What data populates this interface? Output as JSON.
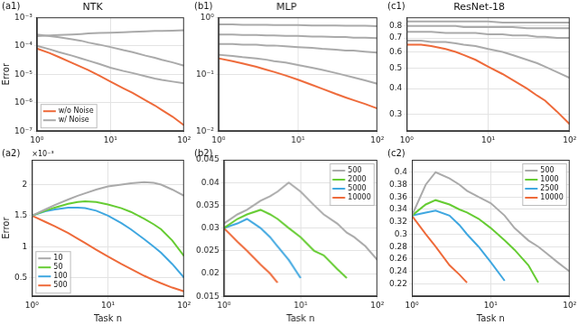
{
  "chart_data": [
    {
      "type": "line",
      "panel": "(a1)",
      "title": "NTK",
      "log": true,
      "grid": true,
      "legend": "lower left",
      "y_label": "Error",
      "xlim": [
        1,
        100
      ],
      "xticks": [
        {
          "value": 1,
          "label": "10⁰"
        },
        {
          "value": 10,
          "label": "10¹"
        },
        {
          "value": 100,
          "label": "10²"
        }
      ],
      "ylim": [
        1e-07,
        0.001
      ],
      "yticks": [
        {
          "value": 1e-07,
          "label": "10⁻⁷"
        },
        {
          "value": 1e-06,
          "label": "10⁻⁶"
        },
        {
          "value": 1e-05,
          "label": "10⁻⁵"
        },
        {
          "value": 0.0001,
          "label": "10⁻⁴"
        },
        {
          "value": 0.001,
          "label": "10⁻³"
        }
      ],
      "x": [
        1,
        1.5,
        2,
        3,
        4,
        5,
        7,
        10,
        15,
        20,
        30,
        40,
        50,
        70,
        100
      ],
      "series": [
        {
          "name": "w/o Noise",
          "color": "#ee6a3a",
          "values": [
            8e-05,
            5.5e-05,
            4e-05,
            2.5e-05,
            1.8e-05,
            1.4e-05,
            9e-06,
            5.5e-06,
            3.2e-06,
            2.2e-06,
            1.2e-06,
            8e-07,
            5.5e-07,
            3.2e-07,
            1.6e-07
          ]
        },
        {
          "name": "w/ Noise",
          "color": "#aaaaaa",
          "values": [
            0.00022,
            0.00023,
            0.00024,
            0.00025,
            0.00026,
            0.00027,
            0.00028,
            0.00029,
            0.0003,
            0.00031,
            0.00032,
            0.00033,
            0.00033,
            0.00034,
            0.00035
          ]
        },
        {
          "color": "#aaaaaa",
          "values": [
            0.00025,
            0.00022,
            0.0002,
            0.00017,
            0.00015,
            0.00013,
            0.00011,
            9e-05,
            7e-05,
            6e-05,
            4.5e-05,
            3.8e-05,
            3.2e-05,
            2.6e-05,
            2e-05
          ]
        },
        {
          "color": "#aaaaaa",
          "values": [
            0.0001,
            7.5e-05,
            6e-05,
            4.5e-05,
            3.6e-05,
            3e-05,
            2.3e-05,
            1.7e-05,
            1.3e-05,
            1.1e-05,
            8.5e-06,
            7e-06,
            6.3e-06,
            5.5e-06,
            4.8e-06
          ]
        }
      ]
    },
    {
      "type": "line",
      "panel": "(b1)",
      "title": "MLP",
      "log": true,
      "grid": true,
      "xlim": [
        1,
        100
      ],
      "xticks": [
        {
          "value": 1,
          "label": "10⁰"
        },
        {
          "value": 10,
          "label": "10¹"
        },
        {
          "value": 100,
          "label": "10²"
        }
      ],
      "ylim": [
        0.01,
        1
      ],
      "yticks": [
        {
          "value": 0.01,
          "label": "10⁻²"
        },
        {
          "value": 0.1,
          "label": "10⁻¹"
        },
        {
          "value": 1,
          "label": "10⁰"
        }
      ],
      "x": [
        1,
        1.5,
        2,
        3,
        4,
        5,
        7,
        10,
        15,
        20,
        30,
        40,
        50,
        70,
        100
      ],
      "series": [
        {
          "color": "#aaaaaa",
          "values": [
            0.75,
            0.75,
            0.74,
            0.74,
            0.74,
            0.73,
            0.73,
            0.73,
            0.72,
            0.72,
            0.72,
            0.71,
            0.71,
            0.71,
            0.7
          ]
        },
        {
          "color": "#aaaaaa",
          "values": [
            0.5,
            0.5,
            0.49,
            0.49,
            0.48,
            0.48,
            0.47,
            0.47,
            0.46,
            0.46,
            0.45,
            0.45,
            0.44,
            0.44,
            0.43
          ]
        },
        {
          "color": "#aaaaaa",
          "values": [
            0.34,
            0.34,
            0.33,
            0.33,
            0.32,
            0.32,
            0.31,
            0.3,
            0.29,
            0.28,
            0.27,
            0.26,
            0.26,
            0.25,
            0.24
          ]
        },
        {
          "color": "#aaaaaa",
          "values": [
            0.22,
            0.21,
            0.2,
            0.19,
            0.18,
            0.17,
            0.16,
            0.145,
            0.13,
            0.12,
            0.105,
            0.095,
            0.088,
            0.078,
            0.068
          ]
        },
        {
          "color": "#ee6a3a",
          "values": [
            0.19,
            0.17,
            0.155,
            0.135,
            0.12,
            0.11,
            0.095,
            0.08,
            0.065,
            0.056,
            0.045,
            0.039,
            0.035,
            0.03,
            0.025
          ]
        }
      ]
    },
    {
      "type": "line",
      "panel": "(c1)",
      "title": "ResNet-18",
      "log": true,
      "grid": true,
      "xlim": [
        1,
        100
      ],
      "xticks": [
        {
          "value": 1,
          "label": "10⁰"
        },
        {
          "value": 10,
          "label": "10¹"
        },
        {
          "value": 100,
          "label": "10²"
        }
      ],
      "ylim": [
        0.25,
        0.88
      ],
      "yticks": [
        0.3,
        0.4,
        0.5,
        0.6,
        0.7,
        0.8
      ],
      "x": [
        1,
        1.5,
        2,
        3,
        4,
        5,
        7,
        10,
        15,
        20,
        30,
        40,
        50,
        70,
        100
      ],
      "series": [
        {
          "color": "#aaaaaa",
          "values": [
            0.84,
            0.84,
            0.84,
            0.84,
            0.84,
            0.84,
            0.84,
            0.84,
            0.83,
            0.83,
            0.83,
            0.83,
            0.83,
            0.83,
            0.83
          ]
        },
        {
          "color": "#aaaaaa",
          "values": [
            0.8,
            0.8,
            0.8,
            0.8,
            0.8,
            0.79,
            0.79,
            0.79,
            0.79,
            0.79,
            0.78,
            0.78,
            0.78,
            0.78,
            0.78
          ]
        },
        {
          "color": "#aaaaaa",
          "values": [
            0.75,
            0.75,
            0.75,
            0.74,
            0.74,
            0.74,
            0.74,
            0.73,
            0.73,
            0.72,
            0.72,
            0.71,
            0.71,
            0.7,
            0.7
          ]
        },
        {
          "color": "#aaaaaa",
          "values": [
            0.68,
            0.68,
            0.67,
            0.67,
            0.66,
            0.65,
            0.64,
            0.62,
            0.6,
            0.58,
            0.55,
            0.53,
            0.51,
            0.48,
            0.45
          ]
        },
        {
          "color": "#ee6a3a",
          "values": [
            0.65,
            0.65,
            0.64,
            0.62,
            0.6,
            0.58,
            0.55,
            0.51,
            0.47,
            0.44,
            0.4,
            0.37,
            0.35,
            0.31,
            0.27
          ]
        }
      ]
    },
    {
      "type": "line",
      "panel": "(a2)",
      "annotation": "×10⁻³",
      "log": "x",
      "grid": true,
      "legend": "lower left",
      "x_label": "Task n",
      "y_label": "Error",
      "xlim": [
        1,
        100
      ],
      "xticks": [
        {
          "value": 1,
          "label": "10⁰"
        },
        {
          "value": 10,
          "label": "10¹"
        },
        {
          "value": 100,
          "label": "10²"
        }
      ],
      "ylim": [
        0.2,
        2.4
      ],
      "yticks": [
        0.5,
        1,
        1.5,
        2
      ],
      "x": [
        1,
        1.5,
        2,
        3,
        4,
        5,
        7,
        10,
        15,
        20,
        30,
        40,
        50,
        70,
        100
      ],
      "series": [
        {
          "name": "10",
          "color": "#aaaaaa",
          "values": [
            1.5,
            1.6,
            1.67,
            1.76,
            1.82,
            1.86,
            1.92,
            1.97,
            2.0,
            2.02,
            2.04,
            2.03,
            2.0,
            1.92,
            1.82
          ]
        },
        {
          "name": "50",
          "color": "#66cc33",
          "values": [
            1.5,
            1.58,
            1.63,
            1.69,
            1.72,
            1.73,
            1.72,
            1.68,
            1.62,
            1.56,
            1.45,
            1.36,
            1.28,
            1.1,
            0.85
          ]
        },
        {
          "name": "100",
          "color": "#3fa7e0",
          "values": [
            1.5,
            1.57,
            1.6,
            1.63,
            1.63,
            1.62,
            1.58,
            1.5,
            1.38,
            1.28,
            1.12,
            1.0,
            0.9,
            0.72,
            0.5
          ]
        },
        {
          "name": "500",
          "color": "#ee6a3a",
          "values": [
            1.5,
            1.4,
            1.33,
            1.22,
            1.13,
            1.06,
            0.95,
            0.84,
            0.72,
            0.64,
            0.53,
            0.46,
            0.41,
            0.34,
            0.28
          ]
        }
      ]
    },
    {
      "type": "line",
      "panel": "(b2)",
      "log": "x",
      "grid": true,
      "legend": "upper right",
      "x_label": "Task n",
      "xlim": [
        1,
        100
      ],
      "xticks": [
        {
          "value": 1,
          "label": "10⁰"
        },
        {
          "value": 10,
          "label": "10¹"
        },
        {
          "value": 100,
          "label": "10²"
        }
      ],
      "ylim": [
        0.015,
        0.045
      ],
      "yticks": [
        0.015,
        0.02,
        0.025,
        0.03,
        0.035,
        0.04,
        0.045
      ],
      "x": [
        1,
        1.5,
        2,
        3,
        4,
        5,
        7,
        10,
        15,
        20,
        30,
        40,
        50,
        70,
        100
      ],
      "series": [
        {
          "name": "500",
          "color": "#aaaaaa",
          "values": [
            0.031,
            0.033,
            0.034,
            0.036,
            0.037,
            0.038,
            0.04,
            0.038,
            0.035,
            0.033,
            0.031,
            0.029,
            0.028,
            0.026,
            0.023
          ]
        },
        {
          "name": "2000",
          "color": "#66cc33",
          "values": [
            0.03,
            0.032,
            0.033,
            0.034,
            0.033,
            0.032,
            0.03,
            0.028,
            0.025,
            0.024,
            0.021,
            0.019,
            null,
            null,
            null
          ]
        },
        {
          "name": "5000",
          "color": "#3fa7e0",
          "values": [
            0.03,
            0.031,
            0.032,
            0.03,
            0.028,
            0.026,
            0.023,
            0.019,
            null,
            null,
            null,
            null,
            null,
            null,
            null
          ]
        },
        {
          "name": "10000",
          "color": "#ee6a3a",
          "values": [
            0.03,
            0.027,
            0.025,
            0.022,
            0.02,
            0.018,
            null,
            null,
            null,
            null,
            null,
            null,
            null,
            null,
            null
          ]
        }
      ]
    },
    {
      "type": "line",
      "panel": "(c2)",
      "log": "x",
      "grid": true,
      "legend": "upper right",
      "x_label": "Task n",
      "xlim": [
        1,
        100
      ],
      "xticks": [
        {
          "value": 1,
          "label": "10⁰"
        },
        {
          "value": 10,
          "label": "10¹"
        },
        {
          "value": 100,
          "label": "10²"
        }
      ],
      "ylim": [
        0.2,
        0.42
      ],
      "yticks": [
        0.22,
        0.24,
        0.26,
        0.28,
        0.3,
        0.32,
        0.34,
        0.36,
        0.38,
        0.4
      ],
      "x": [
        1,
        1.5,
        2,
        3,
        4,
        5,
        7,
        10,
        15,
        20,
        30,
        40,
        50,
        70,
        100
      ],
      "series": [
        {
          "name": "500",
          "color": "#aaaaaa",
          "values": [
            0.33,
            0.38,
            0.4,
            0.39,
            0.38,
            0.37,
            0.36,
            0.35,
            0.33,
            0.31,
            0.29,
            0.28,
            0.27,
            0.255,
            0.24
          ]
        },
        {
          "name": "1000",
          "color": "#66cc33",
          "values": [
            0.33,
            0.348,
            0.355,
            0.348,
            0.34,
            0.335,
            0.325,
            0.31,
            0.29,
            0.275,
            0.25,
            0.222,
            null,
            null,
            null
          ]
        },
        {
          "name": "2500",
          "color": "#3fa7e0",
          "values": [
            0.33,
            0.335,
            0.338,
            0.33,
            0.315,
            0.3,
            0.28,
            0.255,
            0.225,
            null,
            null,
            null,
            null,
            null,
            null
          ]
        },
        {
          "name": "10000",
          "color": "#ee6a3a",
          "values": [
            0.33,
            0.3,
            0.28,
            0.25,
            0.235,
            0.222,
            null,
            null,
            null,
            null,
            null,
            null,
            null,
            null,
            null
          ]
        }
      ]
    }
  ]
}
